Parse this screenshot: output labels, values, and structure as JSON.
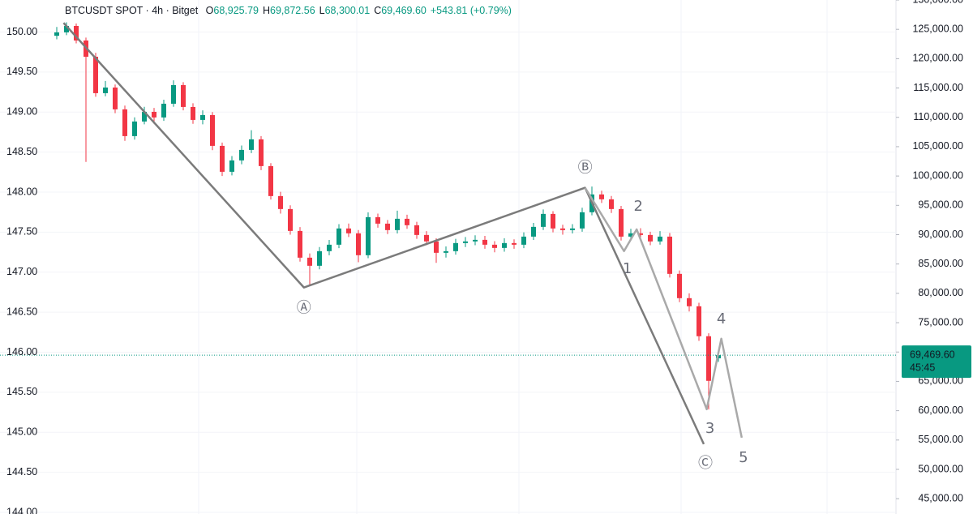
{
  "chart_data": {
    "type": "candlestick",
    "header": {
      "symbol": "BTCUSDT SPOT · 4h · Bitget",
      "items": [
        {
          "key": "O",
          "value": "68,925.79"
        },
        {
          "key": "H",
          "value": "69,872.56"
        },
        {
          "key": "L",
          "value": "68,300.01"
        },
        {
          "key": "C",
          "value": "69,469.60"
        }
      ],
      "change": "+543.81 (+0.79%)"
    },
    "last_price_label": "69,469.60",
    "countdown": "45:45",
    "up_color": "#089981",
    "down_color": "#f23645",
    "open": [
      123900,
      124480,
      125580,
      123100,
      120330,
      114120,
      115080,
      111360,
      106800,
      109290,
      110940,
      109980,
      112320,
      115500,
      111770,
      109560,
      110390,
      105140,
      100720,
      102660,
      104450,
      106250,
      101690,
      96580,
      94370,
      90640,
      86080,
      84700,
      87190,
      88290,
      91060,
      90230,
      86500,
      92990,
      91880,
      90780,
      92710,
      91610,
      89950,
      88850,
      86910,
      87190,
      88570,
      88850,
      89120,
      88290,
      87740,
      88570,
      88290,
      89670,
      91330,
      93540,
      91060,
      90780,
      91060,
      93820,
      96860,
      96030,
      94370,
      89670,
      90230,
      89950,
      88850,
      89670,
      83320,
      79180,
      77800,
      72690,
      68925.79
    ],
    "high": [
      125400,
      126200,
      126000,
      123600,
      121000,
      116200,
      115600,
      112000,
      110000,
      111800,
      111600,
      113000,
      116300,
      116000,
      112400,
      111200,
      110900,
      105700,
      103400,
      105200,
      107800,
      106800,
      102200,
      97300,
      95000,
      91300,
      86800,
      87900,
      89100,
      91800,
      91900,
      90800,
      93800,
      93600,
      92500,
      94100,
      93400,
      92200,
      90600,
      89400,
      88000,
      89300,
      89600,
      89900,
      89800,
      88900,
      89400,
      89200,
      90400,
      92000,
      94300,
      94000,
      91700,
      91800,
      94600,
      98200,
      97500,
      96600,
      94900,
      91000,
      91100,
      90500,
      90600,
      90300,
      83900,
      80000,
      78400,
      73200,
      69872.56
    ],
    "low": [
      123300,
      124000,
      122600,
      102400,
      113500,
      113600,
      110700,
      106000,
      106200,
      108800,
      108900,
      109400,
      111800,
      111200,
      108900,
      108800,
      104400,
      100000,
      100100,
      102000,
      103900,
      101000,
      96000,
      93600,
      90000,
      85400,
      81400,
      84100,
      86500,
      87700,
      89600,
      85300,
      86000,
      91200,
      90100,
      90200,
      91000,
      89300,
      88200,
      85200,
      86100,
      86600,
      87900,
      88200,
      87600,
      87000,
      87100,
      87600,
      87700,
      89100,
      90800,
      90400,
      90000,
      90200,
      90500,
      93300,
      95400,
      93700,
      89000,
      89100,
      89300,
      88200,
      88300,
      82700,
      78500,
      76900,
      71900,
      60200,
      68300.01
    ],
    "close": [
      124480,
      125580,
      123100,
      120330,
      114120,
      115080,
      111360,
      106800,
      109290,
      110940,
      109980,
      112320,
      115500,
      111770,
      109560,
      110390,
      105140,
      100720,
      102660,
      104450,
      106250,
      101690,
      96580,
      94370,
      90640,
      86080,
      84700,
      87190,
      88290,
      91060,
      90230,
      86500,
      92990,
      91880,
      90780,
      92710,
      91610,
      89950,
      88850,
      86910,
      87190,
      88570,
      88850,
      89120,
      88290,
      87740,
      88570,
      88290,
      89670,
      91330,
      93540,
      91060,
      90780,
      91060,
      93820,
      96860,
      96030,
      94370,
      89670,
      90230,
      89950,
      88850,
      89670,
      83320,
      79180,
      77800,
      72690,
      65090,
      69469.6
    ],
    "ylim": [
      143.98,
      150.4
    ],
    "yticks": [
      {
        "value": 150,
        "label": "150.00"
      },
      {
        "value": 149.5,
        "label": "149.50"
      },
      {
        "value": 149,
        "label": "149.00"
      },
      {
        "value": 148.5,
        "label": "148.50"
      },
      {
        "value": 148,
        "label": "148.00"
      },
      {
        "value": 147.5,
        "label": "147.50"
      },
      {
        "value": 147,
        "label": "147.00"
      },
      {
        "value": 146.5,
        "label": "146.50"
      },
      {
        "value": 146,
        "label": "146.00"
      },
      {
        "value": 145.5,
        "label": "145.50"
      },
      {
        "value": 145,
        "label": "145.00"
      },
      {
        "value": 144.5,
        "label": "144.50"
      },
      {
        "value": 144,
        "label": "144.00"
      }
    ],
    "y2lim": [
      42400,
      130000
    ],
    "y2ticks": [
      {
        "value": 130000,
        "label": "130,000.00"
      },
      {
        "value": 125000,
        "label": "125,000.00"
      },
      {
        "value": 120000,
        "label": "120,000.00"
      },
      {
        "value": 115000,
        "label": "115,000.00"
      },
      {
        "value": 110000,
        "label": "110,000.00"
      },
      {
        "value": 105000,
        "label": "105,000.00"
      },
      {
        "value": 100000,
        "label": "100,000.00"
      },
      {
        "value": 95000,
        "label": "95,000.00"
      },
      {
        "value": 90000,
        "label": "90,000.00"
      },
      {
        "value": 85000,
        "label": "85,000.00"
      },
      {
        "value": 80000,
        "label": "80,000.00"
      },
      {
        "value": 75000,
        "label": "75,000.00"
      },
      {
        "value": 70000,
        "label": "70,000.00"
      },
      {
        "value": 65000,
        "label": "65,000.00"
      },
      {
        "value": 60000,
        "label": "60,000.00"
      },
      {
        "value": 55000,
        "label": "55,000.00"
      },
      {
        "value": 50000,
        "label": "50,000.00"
      },
      {
        "value": 45000,
        "label": "45,000.00"
      }
    ],
    "grid": true,
    "waves": [
      {
        "color": "#7b7b7b",
        "points": [
          {
            "x": 0.7,
            "y": 126100
          },
          {
            "x": 25.4,
            "y": 81000,
            "label": "Ⓐ"
          },
          {
            "x": 54.3,
            "y": 98000,
            "label": "Ⓑ"
          },
          {
            "x": 66.5,
            "y": 54300,
            "label": "Ⓒ"
          }
        ]
      },
      {
        "color": "#a9a9a9",
        "points": [
          {
            "x": 54.3,
            "y": 98000
          },
          {
            "x": 58.3,
            "y": 87200,
            "label": "1"
          },
          {
            "x": 59.6,
            "y": 90900,
            "label": "2"
          },
          {
            "x": 66.8,
            "y": 60250,
            "label": "3"
          },
          {
            "x": 68.3,
            "y": 72270,
            "label": "4"
          },
          {
            "x": 70.4,
            "y": 55400,
            "label": "5"
          }
        ]
      }
    ]
  }
}
